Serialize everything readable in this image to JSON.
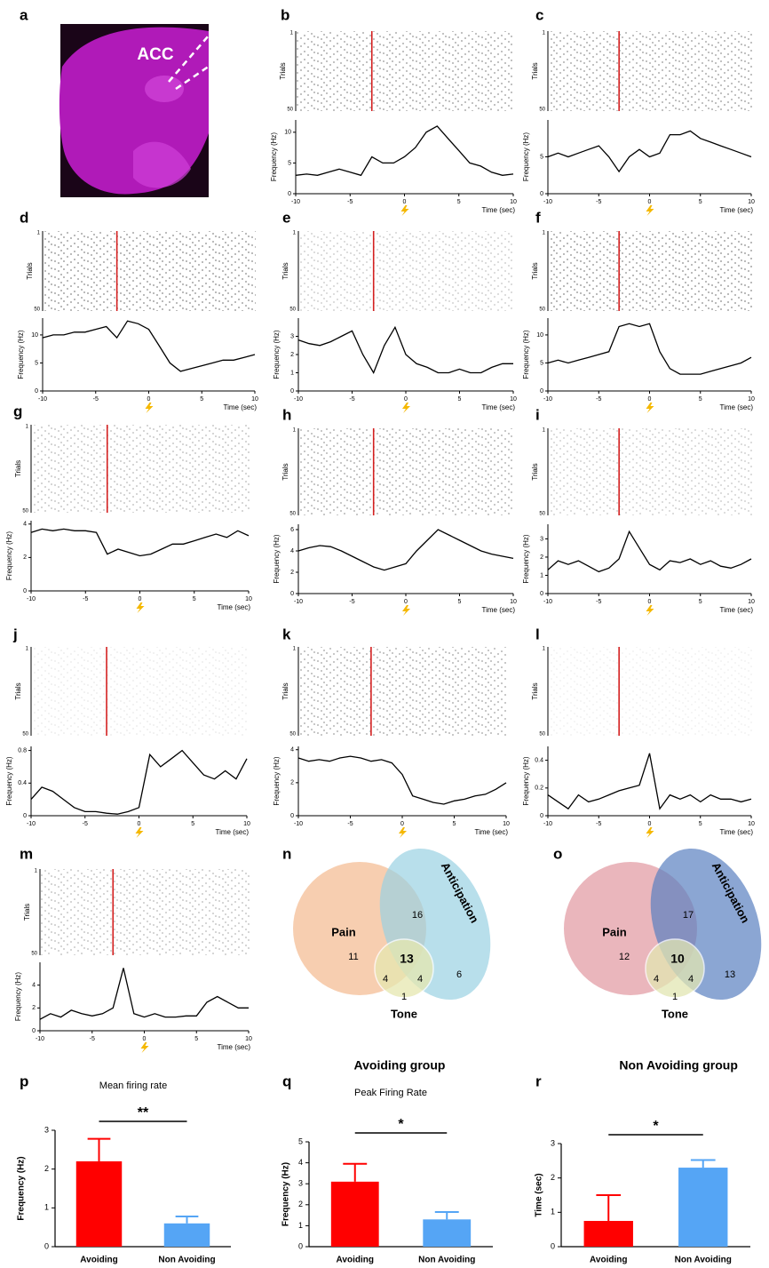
{
  "chart_data": [
    {
      "type": "image",
      "panel": "a",
      "label": "ACC"
    },
    {
      "type": "line",
      "panel": "b",
      "raster_label": "Trials",
      "trials": [
        1,
        50
      ],
      "ylabel": "Frequency (Hz)",
      "xlabel": "Time (sec)",
      "color": "#000000",
      "x": [
        -10,
        -9,
        -8,
        -7,
        -6,
        -5,
        -4,
        -3,
        -2,
        -1,
        0,
        1,
        2,
        3,
        4,
        5,
        6,
        7,
        8,
        9,
        10
      ],
      "values": [
        3,
        3.2,
        3,
        3.5,
        4,
        3.5,
        3,
        6,
        5,
        5,
        6,
        7.5,
        10,
        11,
        9,
        7,
        5,
        4.5,
        3.5,
        3,
        3.2
      ],
      "xlim": [
        -10,
        10
      ],
      "xticks": [
        -10,
        -5,
        0,
        5,
        10
      ],
      "ylim": [
        0,
        12
      ],
      "yticks": [
        0,
        5,
        10
      ]
    },
    {
      "type": "line",
      "panel": "c",
      "raster_label": "Trials",
      "trials": [
        1,
        50
      ],
      "ylabel": "Frequency (Hz)",
      "xlabel": "Time (sec)",
      "color": "#000000",
      "x": [
        -10,
        -9,
        -8,
        -7,
        -6,
        -5,
        -4,
        -3,
        -2,
        -1,
        0,
        1,
        2,
        3,
        4,
        5,
        6,
        7,
        8,
        9,
        10
      ],
      "values": [
        5,
        5.5,
        5,
        5.5,
        6,
        6.5,
        5,
        3,
        5,
        6,
        5,
        5.5,
        8,
        8,
        8.5,
        7.5,
        7,
        6.5,
        6,
        5.5,
        5
      ],
      "xlim": [
        -10,
        10
      ],
      "xticks": [
        -10,
        -5,
        0,
        5,
        10
      ],
      "ylim": [
        0,
        10
      ],
      "yticks": [
        0,
        5
      ]
    },
    {
      "type": "line",
      "panel": "d",
      "raster_label": "Trials",
      "trials": [
        1,
        50
      ],
      "ylabel": "Frequency (Hz)",
      "xlabel": "Time (sec)",
      "color": "#000000",
      "x": [
        -10,
        -9,
        -8,
        -7,
        -6,
        -5,
        -4,
        -3,
        -2,
        -1,
        0,
        1,
        2,
        3,
        4,
        5,
        6,
        7,
        8,
        9,
        10
      ],
      "values": [
        9.5,
        10,
        10,
        10.5,
        10.5,
        11,
        11.5,
        9.5,
        12.5,
        12,
        11,
        8,
        5,
        3.5,
        4,
        4.5,
        5,
        5.5,
        5.5,
        6,
        6.5
      ],
      "xlim": [
        -10,
        10
      ],
      "xticks": [
        -10,
        -5,
        0,
        5,
        10
      ],
      "ylim": [
        0,
        13
      ],
      "yticks": [
        0,
        5,
        10
      ]
    },
    {
      "type": "line",
      "panel": "e",
      "raster_label": "Trials",
      "trials": [
        1,
        50
      ],
      "ylabel": "Frequency (Hz)",
      "xlabel": "Time (sec)",
      "color": "#000000",
      "x": [
        -10,
        -9,
        -8,
        -7,
        -6,
        -5,
        -4,
        -3,
        -2,
        -1,
        0,
        1,
        2,
        3,
        4,
        5,
        6,
        7,
        8,
        9,
        10
      ],
      "values": [
        2.8,
        2.6,
        2.5,
        2.7,
        3,
        3.3,
        2,
        1,
        2.5,
        3.5,
        2,
        1.5,
        1.3,
        1,
        1,
        1.2,
        1,
        1,
        1.3,
        1.5,
        1.5
      ],
      "xlim": [
        -10,
        10
      ],
      "xticks": [
        -10,
        -5,
        0,
        5,
        10
      ],
      "ylim": [
        0,
        4
      ],
      "yticks": [
        0,
        1,
        2,
        3
      ]
    },
    {
      "type": "line",
      "panel": "f",
      "raster_label": "Trials",
      "trials": [
        1,
        50
      ],
      "ylabel": "Frequency (Hz)",
      "xlabel": "Time (sec)",
      "color": "#000000",
      "x": [
        -10,
        -9,
        -8,
        -7,
        -6,
        -5,
        -4,
        -3,
        -2,
        -1,
        0,
        1,
        2,
        3,
        4,
        5,
        6,
        7,
        8,
        9,
        10
      ],
      "values": [
        5,
        5.5,
        5,
        5.5,
        6,
        6.5,
        7,
        11.5,
        12,
        11.5,
        12,
        7,
        4,
        3,
        3,
        3,
        3.5,
        4,
        4.5,
        5,
        6
      ],
      "xlim": [
        -10,
        10
      ],
      "xticks": [
        -10,
        -5,
        0,
        5,
        10
      ],
      "ylim": [
        0,
        13
      ],
      "yticks": [
        0,
        5,
        10
      ]
    },
    {
      "type": "line",
      "panel": "g",
      "raster_label": "Trials",
      "trials": [
        1,
        50
      ],
      "ylabel": "Frequency (Hz)",
      "xlabel": "Time (sec)",
      "color": "#000000",
      "x": [
        -10,
        -9,
        -8,
        -7,
        -6,
        -5,
        -4,
        -3,
        -2,
        -1,
        0,
        1,
        2,
        3,
        4,
        5,
        6,
        7,
        8,
        9,
        10
      ],
      "values": [
        3.5,
        3.7,
        3.6,
        3.7,
        3.6,
        3.6,
        3.5,
        2.2,
        2.5,
        2.3,
        2.1,
        2.2,
        2.5,
        2.8,
        2.8,
        3,
        3.2,
        3.4,
        3.2,
        3.6,
        3.3
      ],
      "xlim": [
        -10,
        10
      ],
      "xticks": [
        -10,
        -5,
        0,
        5,
        10
      ],
      "ylim": [
        0,
        4.2
      ],
      "yticks": [
        0,
        2,
        4
      ]
    },
    {
      "type": "line",
      "panel": "h",
      "raster_label": "Trials",
      "trials": [
        1,
        50
      ],
      "ylabel": "Frequency (Hz)",
      "xlabel": "Time (sec)",
      "color": "#000000",
      "x": [
        -10,
        -9,
        -8,
        -7,
        -6,
        -5,
        -4,
        -3,
        -2,
        -1,
        0,
        1,
        2,
        3,
        4,
        5,
        6,
        7,
        8,
        9,
        10
      ],
      "values": [
        4,
        4.3,
        4.5,
        4.4,
        4,
        3.5,
        3,
        2.5,
        2.2,
        2.5,
        2.8,
        4,
        5,
        6,
        5.5,
        5,
        4.5,
        4,
        3.7,
        3.5,
        3.3
      ],
      "xlim": [
        -10,
        10
      ],
      "xticks": [
        -10,
        -5,
        0,
        5,
        10
      ],
      "ylim": [
        0,
        6.5
      ],
      "yticks": [
        0,
        2,
        4,
        6
      ]
    },
    {
      "type": "line",
      "panel": "i",
      "raster_label": "Trials",
      "trials": [
        1,
        50
      ],
      "ylabel": "Frequency (Hz)",
      "xlabel": "Time (sec)",
      "color": "#000000",
      "x": [
        -10,
        -9,
        -8,
        -7,
        -6,
        -5,
        -4,
        -3,
        -2,
        -1,
        0,
        1,
        2,
        3,
        4,
        5,
        6,
        7,
        8,
        9,
        10
      ],
      "values": [
        1.3,
        1.8,
        1.6,
        1.8,
        1.5,
        1.2,
        1.4,
        1.9,
        3.4,
        2.5,
        1.6,
        1.3,
        1.8,
        1.7,
        1.9,
        1.6,
        1.8,
        1.5,
        1.4,
        1.6,
        1.9
      ],
      "xlim": [
        -10,
        10
      ],
      "xticks": [
        -10,
        -5,
        0,
        5,
        10
      ],
      "ylim": [
        0,
        3.8
      ],
      "yticks": [
        0,
        1,
        2,
        3
      ]
    },
    {
      "type": "line",
      "panel": "j",
      "raster_label": "Trials",
      "trials": [
        1,
        50
      ],
      "ylabel": "Frequency (Hz)",
      "xlabel": "Time (sec)",
      "color": "#000000",
      "x": [
        -10,
        -9,
        -8,
        -7,
        -6,
        -5,
        -4,
        -3,
        -2,
        -1,
        0,
        1,
        2,
        3,
        4,
        5,
        6,
        7,
        8,
        9,
        10
      ],
      "values": [
        0.2,
        0.35,
        0.3,
        0.2,
        0.1,
        0.05,
        0.05,
        0.03,
        0.02,
        0.05,
        0.1,
        0.75,
        0.6,
        0.7,
        0.8,
        0.65,
        0.5,
        0.45,
        0.55,
        0.45,
        0.7
      ],
      "xlim": [
        -10,
        10
      ],
      "xticks": [
        -10,
        -5,
        0,
        5,
        10
      ],
      "ylim": [
        0,
        0.85
      ],
      "yticks": [
        0,
        0.4,
        0.8
      ]
    },
    {
      "type": "line",
      "panel": "k",
      "raster_label": "Trials",
      "trials": [
        1,
        50
      ],
      "ylabel": "Frequency (Hz)",
      "xlabel": "Time (sec)",
      "color": "#000000",
      "x": [
        -10,
        -9,
        -8,
        -7,
        -6,
        -5,
        -4,
        -3,
        -2,
        -1,
        0,
        1,
        2,
        3,
        4,
        5,
        6,
        7,
        8,
        9,
        10
      ],
      "values": [
        3.5,
        3.3,
        3.4,
        3.3,
        3.5,
        3.6,
        3.5,
        3.3,
        3.4,
        3.2,
        2.5,
        1.2,
        1,
        0.8,
        0.7,
        0.9,
        1,
        1.2,
        1.3,
        1.6,
        2
      ],
      "xlim": [
        -10,
        10
      ],
      "xticks": [
        -10,
        -5,
        0,
        5,
        10
      ],
      "ylim": [
        0,
        4.2
      ],
      "yticks": [
        0,
        2,
        4
      ]
    },
    {
      "type": "line",
      "panel": "l",
      "raster_label": "Trials",
      "trials": [
        1,
        50
      ],
      "ylabel": "Frequency (Hz)",
      "xlabel": "Time (sec)",
      "color": "#000000",
      "x": [
        -10,
        -9,
        -8,
        -7,
        -6,
        -5,
        -4,
        -3,
        -2,
        -1,
        0,
        1,
        2,
        3,
        4,
        5,
        6,
        7,
        8,
        9,
        10
      ],
      "values": [
        0.15,
        0.1,
        0.05,
        0.15,
        0.1,
        0.12,
        0.15,
        0.18,
        0.2,
        0.22,
        0.45,
        0.05,
        0.15,
        0.12,
        0.15,
        0.1,
        0.15,
        0.12,
        0.12,
        0.1,
        0.12
      ],
      "xlim": [
        -10,
        10
      ],
      "xticks": [
        -10,
        -5,
        0,
        5,
        10
      ],
      "ylim": [
        0,
        0.5
      ],
      "yticks": [
        0,
        0.2,
        0.4
      ]
    },
    {
      "type": "line",
      "panel": "m",
      "raster_label": "Trials",
      "trials": [
        1,
        50
      ],
      "ylabel": "Frequency (Hz)",
      "xlabel": "Time (sec)",
      "color": "#000000",
      "x": [
        -10,
        -9,
        -8,
        -7,
        -6,
        -5,
        -4,
        -3,
        -2,
        -1,
        0,
        1,
        2,
        3,
        4,
        5,
        6,
        7,
        8,
        9,
        10
      ],
      "values": [
        1,
        1.5,
        1.2,
        1.8,
        1.5,
        1.3,
        1.5,
        2,
        5.5,
        1.5,
        1.2,
        1.5,
        1.2,
        1.2,
        1.3,
        1.3,
        2.5,
        3,
        2.5,
        2,
        2
      ],
      "xlim": [
        -10,
        10
      ],
      "xticks": [
        -10,
        -5,
        0,
        5,
        10
      ],
      "ylim": [
        0,
        6
      ],
      "yticks": [
        0,
        2,
        4
      ]
    },
    {
      "type": "venn",
      "panel": "n",
      "title": "Avoiding group",
      "sets": [
        {
          "name": "Pain",
          "color": "#f6c6a2"
        },
        {
          "name": "Anticipation",
          "color": "#9ad2e2"
        },
        {
          "name": "Tone",
          "color": "#e6e8b0"
        }
      ],
      "regions": {
        "pain": 11,
        "pain_anticipation": 16,
        "all": 13,
        "anticipation": 6,
        "pain_tone": 4,
        "anticipation_tone": 4,
        "tone": 1
      }
    },
    {
      "type": "venn",
      "panel": "o",
      "title": "Non Avoiding group",
      "sets": [
        {
          "name": "Pain",
          "color": "#e6a9b0"
        },
        {
          "name": "Anticipation",
          "color": "#5a80c0"
        },
        {
          "name": "Tone",
          "color": "#e2e6b2"
        }
      ],
      "regions": {
        "pain": 12,
        "pain_anticipation": 17,
        "all": 10,
        "anticipation": 13,
        "pain_tone": 4,
        "anticipation_tone": 4,
        "tone": 1
      }
    },
    {
      "type": "bar",
      "panel": "p",
      "title": "Mean firing rate",
      "ylabel": "Frequency (Hz)",
      "significance": "**",
      "categories": [
        "Avoiding",
        "Non Avoiding"
      ],
      "values": [
        2.2,
        0.6
      ],
      "errors": [
        0.58,
        0.18
      ],
      "colors": [
        "#ff0000",
        "#55a5f5"
      ],
      "ylim": [
        0,
        3
      ],
      "yticks": [
        0,
        1,
        2,
        3
      ]
    },
    {
      "type": "bar",
      "panel": "q",
      "title": "Peak Firing Rate",
      "ylabel": "Frequency (Hz)",
      "significance": "*",
      "categories": [
        "Avoiding",
        "Non Avoiding"
      ],
      "values": [
        3.1,
        1.3
      ],
      "errors": [
        0.85,
        0.35
      ],
      "colors": [
        "#ff0000",
        "#55a5f5"
      ],
      "ylim": [
        0,
        5
      ],
      "yticks": [
        0,
        1,
        2,
        3,
        4,
        5
      ]
    },
    {
      "type": "bar",
      "panel": "r",
      "ylabel": "Time (sec)",
      "significance": "*",
      "categories": [
        "Avoiding",
        "Non Avoiding"
      ],
      "values": [
        0.75,
        2.3
      ],
      "errors": [
        0.75,
        0.22
      ],
      "colors": [
        "#ff0000",
        "#55a5f5"
      ],
      "ylim": [
        0,
        3
      ],
      "yticks": [
        0,
        1,
        2,
        3
      ]
    }
  ]
}
